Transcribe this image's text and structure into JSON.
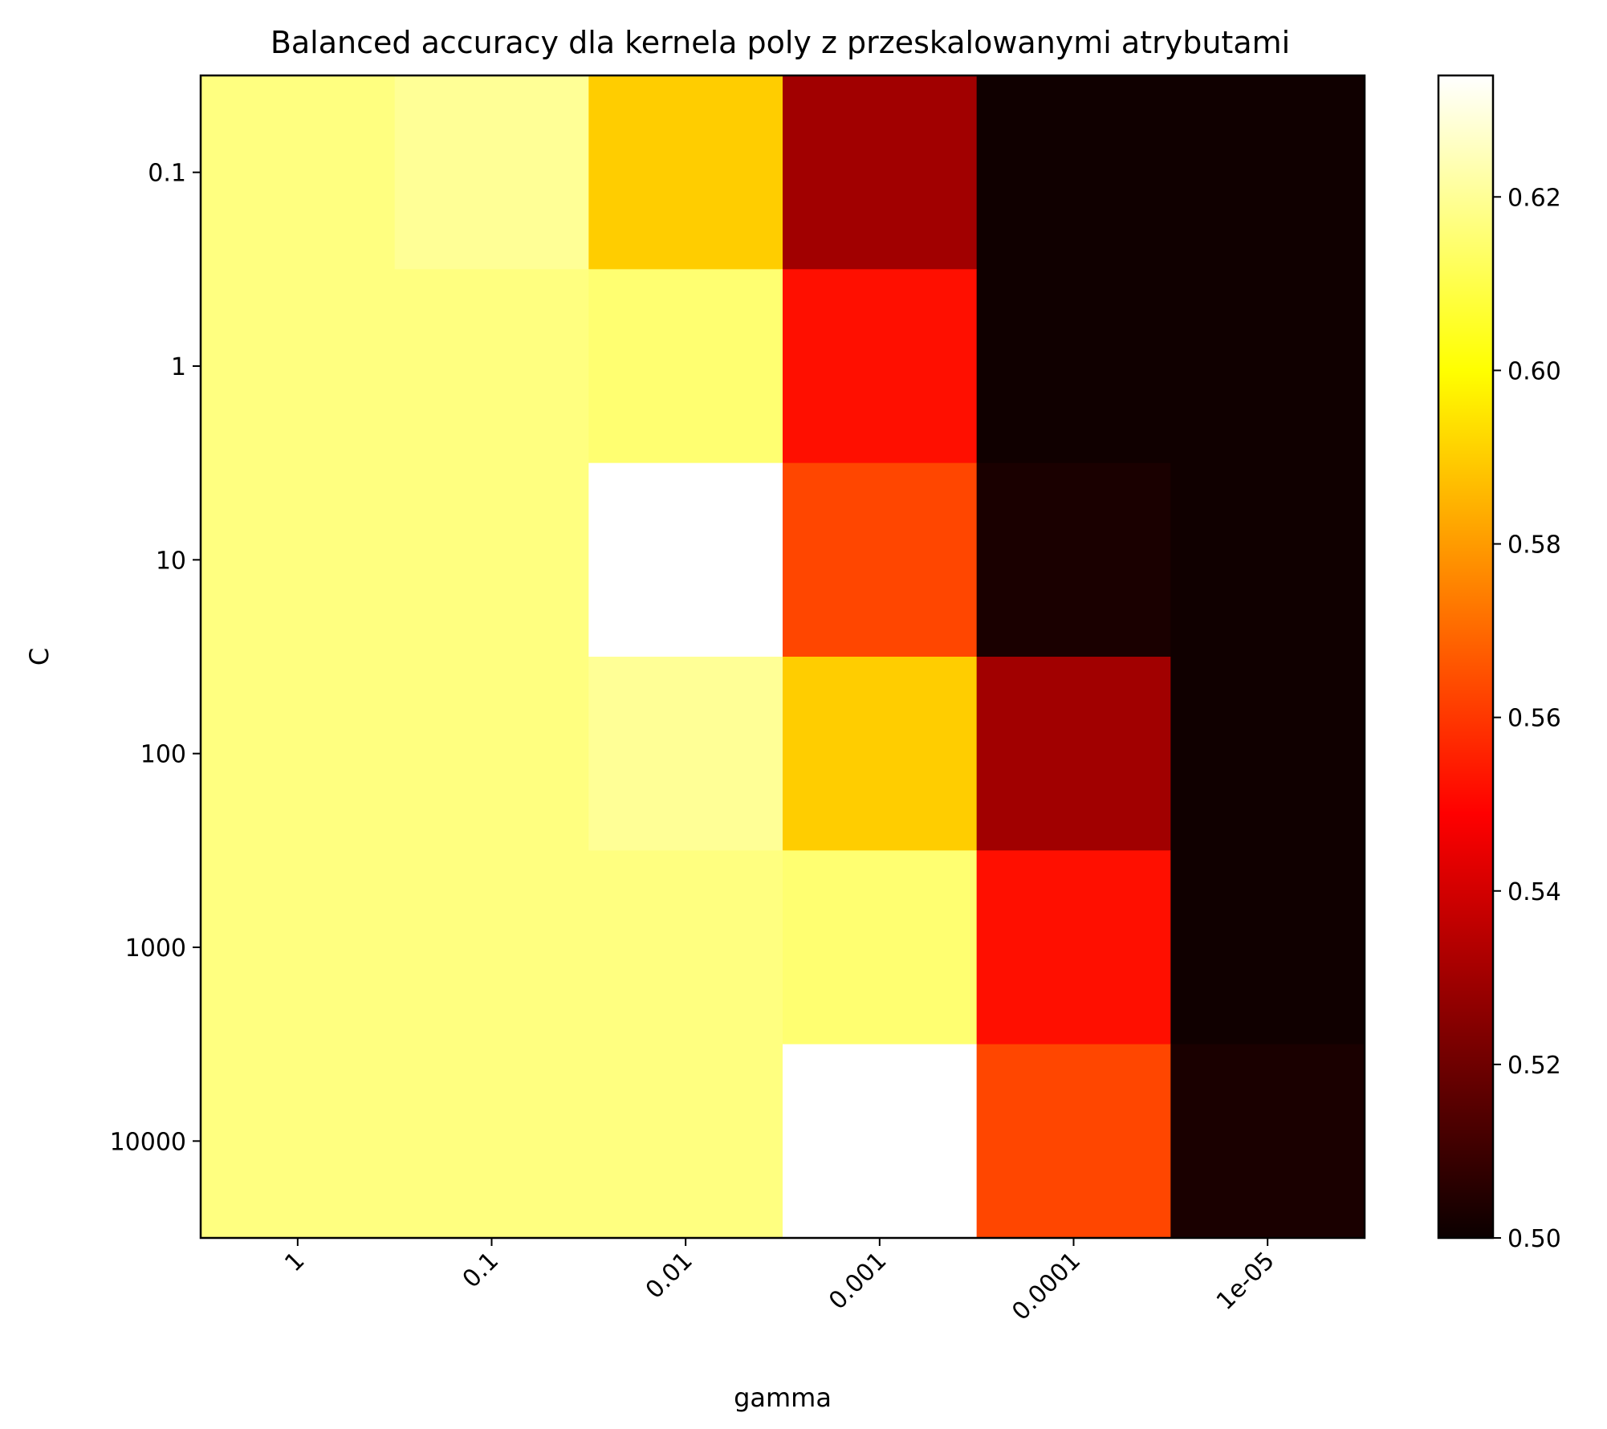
{
  "chart_data": {
    "type": "heatmap",
    "title": "Balanced accuracy dla kernela poly z przeskalowanymi atrybutami",
    "xlabel": "gamma",
    "ylabel": "C",
    "x_categories": [
      "1",
      "0.1",
      "0.01",
      "0.001",
      "0.0001",
      "1e-05"
    ],
    "y_categories": [
      "0.1",
      "1",
      "10",
      "100",
      "1000",
      "10000"
    ],
    "values": [
      [
        0.617,
        0.62,
        0.59,
        0.53,
        0.501,
        0.501
      ],
      [
        0.617,
        0.617,
        0.615,
        0.552,
        0.501,
        0.501
      ],
      [
        0.617,
        0.617,
        0.634,
        0.563,
        0.503,
        0.501
      ],
      [
        0.617,
        0.617,
        0.62,
        0.59,
        0.53,
        0.501
      ],
      [
        0.617,
        0.617,
        0.617,
        0.615,
        0.552,
        0.501
      ],
      [
        0.617,
        0.617,
        0.617,
        0.634,
        0.563,
        0.503
      ]
    ],
    "colormap": "hot",
    "colorbar": {
      "range": [
        0.5,
        0.634
      ],
      "ticks": [
        "0.50",
        "0.52",
        "0.54",
        "0.56",
        "0.58",
        "0.60",
        "0.62"
      ]
    },
    "grid": false,
    "legend": "colorbar on right"
  }
}
